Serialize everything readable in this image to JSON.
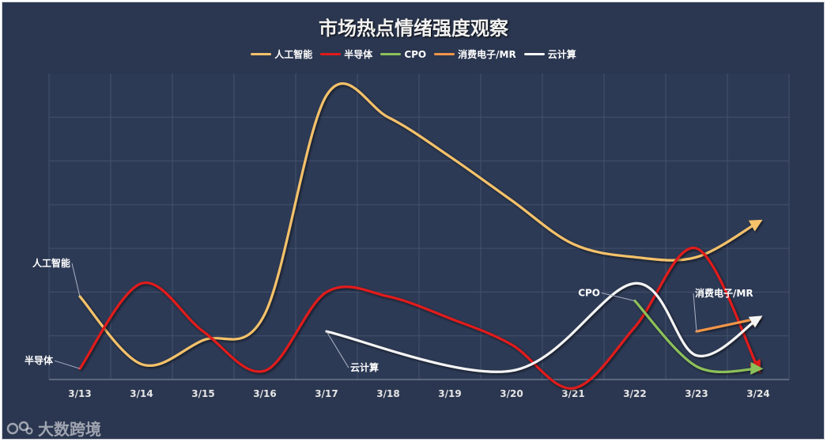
{
  "chart_data": {
    "type": "line",
    "title": "市场热点情绪强度观察",
    "categories": [
      "3/13",
      "3/14",
      "3/15",
      "3/16",
      "3/17",
      "3/18",
      "3/19",
      "3/20",
      "3/21",
      "3/22",
      "3/23",
      "3/24"
    ],
    "ylim": [
      0,
      7
    ],
    "grid": true,
    "legend_position": "top",
    "series": [
      {
        "name": "人工智能",
        "color": "#f5c26b",
        "values": [
          1.9,
          0.35,
          0.9,
          1.5,
          6.5,
          6.0,
          5.1,
          4.1,
          3.1,
          2.8,
          2.8,
          3.6
        ]
      },
      {
        "name": "半导体",
        "color": "#e01a1a",
        "values": [
          0.25,
          2.2,
          1.1,
          0.2,
          2.0,
          1.9,
          1.4,
          0.8,
          -0.2,
          1.2,
          3.0,
          0.25
        ]
      },
      {
        "name": "CPO",
        "color": "#8cc05a",
        "values": [
          null,
          null,
          null,
          null,
          null,
          null,
          null,
          null,
          null,
          1.8,
          0.3,
          0.25
        ]
      },
      {
        "name": "消费电子/MR",
        "color": "#f0954a",
        "values": [
          null,
          null,
          null,
          null,
          null,
          null,
          null,
          null,
          null,
          null,
          1.1,
          1.4
        ]
      },
      {
        "name": "云计算",
        "color": "#f4f4f4",
        "values": [
          null,
          null,
          null,
          null,
          1.1,
          null,
          null,
          0.2,
          null,
          2.2,
          0.55,
          1.4
        ]
      }
    ],
    "annotations": [
      {
        "text": "人工智能",
        "series": "人工智能"
      },
      {
        "text": "半导体",
        "series": "半导体"
      },
      {
        "text": "云计算",
        "series": "云计算"
      },
      {
        "text": "CPO",
        "series": "CPO"
      },
      {
        "text": "消费电子/MR",
        "series": "消费电子/MR"
      }
    ]
  },
  "watermark": {
    "text": "大数跨境"
  }
}
